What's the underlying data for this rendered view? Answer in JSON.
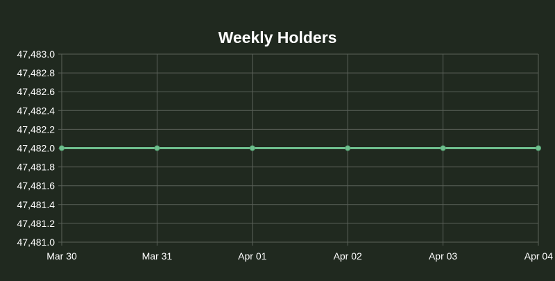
{
  "colors": {
    "background": "#20291f",
    "grid": "#5b625a",
    "axis_text": "#ffffff",
    "title": "#ffffff",
    "line": "#6fbf8e",
    "point_fill": "#6fbf8e",
    "point_stroke": "#5aa878"
  },
  "chart_data": {
    "type": "line",
    "title": "Weekly Holders",
    "xlabel": "",
    "ylabel": "",
    "categories": [
      "Mar 30",
      "Mar 31",
      "Apr 01",
      "Apr 02",
      "Apr 03",
      "Apr 04"
    ],
    "series": [
      {
        "values": [
          47482,
          47482,
          47482,
          47482,
          47482,
          47482
        ]
      }
    ],
    "ylim": [
      47481.0,
      47483.0
    ],
    "yticks": [
      "47,483.0",
      "47,482.8",
      "47,482.6",
      "47,482.4",
      "47,482.2",
      "47,482.0",
      "47,481.8",
      "47,481.6",
      "47,481.4",
      "47,481.2",
      "47,481.0"
    ],
    "grid": true,
    "legend": "none"
  }
}
